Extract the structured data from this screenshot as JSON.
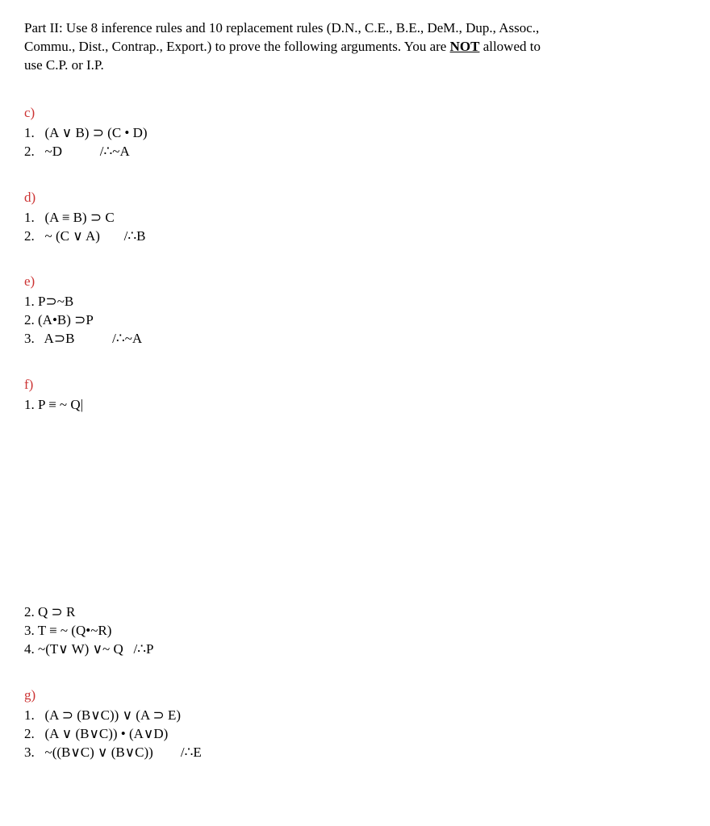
{
  "intro": {
    "line1a": "Part II: Use 8 inference rules and 10 replacement rules (D.N., C.E., B.E., DeM., Dup., Assoc.,",
    "line2a": "Commu., Dist., Contrap., Export.) to prove the following arguments. You are ",
    "not": "NOT",
    "line2b": " allowed to",
    "line3": "use C.P. or I.P."
  },
  "problems": {
    "c": {
      "label": "c)",
      "l1": "1.   (A ∨ B) ⊃ (C • D)",
      "l2": "2.   ~D           /∴~A"
    },
    "d": {
      "label": "d)",
      "l1": "1.   (A ≡ B) ⊃ C",
      "l2": "2.   ~ (C ∨ A)       /∴B"
    },
    "e": {
      "label": "e)",
      "l1": "1. P⊃~B",
      "l2": "2. (A•B) ⊃P",
      "l3": "3.   A⊃B           /∴~A"
    },
    "f": {
      "label": "f)",
      "l1": "1. P ≡ ~ Q|",
      "l2": "2. Q ⊃ R",
      "l3": "3. T ≡ ~ (Q•~R)",
      "l4": "4. ~(T∨ W) ∨~ Q   /∴P"
    },
    "g": {
      "label": "g)",
      "l1": "1.   (A ⊃ (B∨C)) ∨ (A ⊃ E)",
      "l2": "2.   (A ∨ (B∨C)) • (A∨D)",
      "l3": "3.   ~((B∨C) ∨ (B∨C))        /∴E"
    }
  }
}
